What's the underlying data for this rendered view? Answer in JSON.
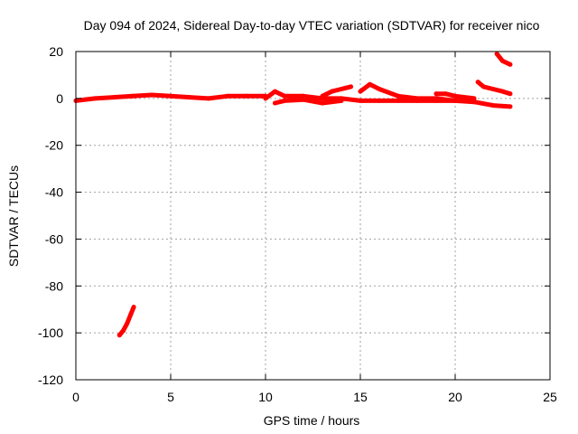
{
  "chart_data": {
    "type": "scatter",
    "title": "Day 094 of 2024, Sidereal Day-to-day VTEC variation (SDTVAR) for receiver nico",
    "xlabel": "GPS time / hours",
    "ylabel": "SDTVAR / TECUs",
    "xlim": [
      0,
      25
    ],
    "ylim": [
      -120,
      20
    ],
    "xticks": [
      0,
      5,
      10,
      15,
      20,
      25
    ],
    "yticks": [
      -120,
      -100,
      -80,
      -60,
      -40,
      -20,
      0,
      20
    ],
    "grid": true,
    "legend": "none",
    "color": "#ff0000",
    "series": [
      {
        "x": [
          0.0,
          1.0,
          2.0,
          3.0,
          4.0,
          5.0,
          6.0,
          7.0,
          8.0,
          9.0,
          10.0
        ],
        "y": [
          -1,
          0,
          0.5,
          1,
          1.5,
          1,
          0.5,
          0,
          1,
          1,
          1
        ]
      },
      {
        "x": [
          10.0,
          10.5,
          11.0,
          12.0,
          13.0,
          14.0,
          15.0,
          16.0,
          17.0,
          18.0,
          19.0,
          20.0,
          21.0,
          22.0,
          22.9
        ],
        "y": [
          0,
          3,
          1,
          1,
          0,
          0,
          -1,
          -1,
          -1,
          -1,
          -1,
          -1,
          -1.5,
          -3,
          -3.5
        ]
      },
      {
        "x": [
          10.5,
          11.0,
          12.0,
          13.0,
          14.0
        ],
        "y": [
          -2,
          -1,
          -0.5,
          -2,
          -1
        ]
      },
      {
        "x": [
          13.0,
          13.5,
          14.0,
          14.5
        ],
        "y": [
          1,
          3,
          4,
          5
        ]
      },
      {
        "x": [
          15.0,
          15.5,
          16.0,
          17.0,
          18.0,
          19.0,
          20.0
        ],
        "y": [
          3,
          6,
          4,
          1,
          0,
          0,
          -1
        ]
      },
      {
        "x": [
          19.0,
          19.5,
          20.0,
          21.0
        ],
        "y": [
          2,
          2,
          1,
          0
        ]
      },
      {
        "x": [
          21.2,
          21.5,
          22.0,
          22.5,
          22.9
        ],
        "y": [
          7,
          5,
          4,
          3,
          2
        ]
      },
      {
        "x": [
          22.2,
          22.5,
          22.9
        ],
        "y": [
          19,
          16,
          14.5
        ]
      },
      {
        "x": [
          2.3,
          2.5,
          2.7,
          2.9,
          3.05
        ],
        "y": [
          -101,
          -99,
          -96,
          -92,
          -89
        ]
      }
    ]
  }
}
